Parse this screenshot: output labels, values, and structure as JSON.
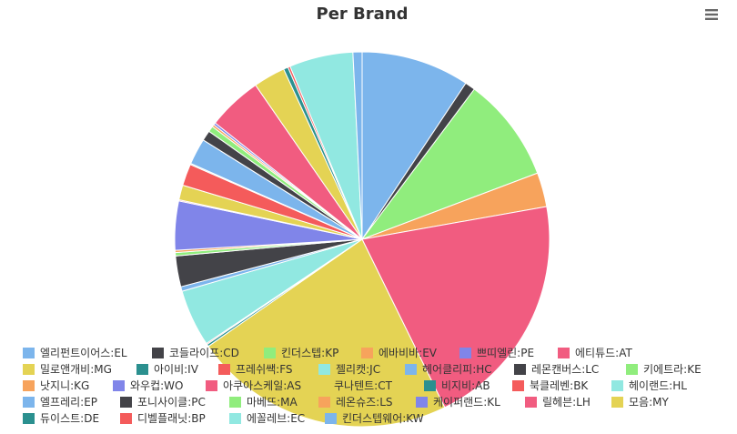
{
  "chart_data": {
    "type": "pie",
    "title": "Per Brand",
    "legend_position": "bottom",
    "slices": [
      {
        "label": "엘리펀트이어스:EL",
        "value": 9.5,
        "color": "#7cb5ec"
      },
      {
        "label": "코들라이프:CD",
        "value": 0.9,
        "color": "#434348"
      },
      {
        "label": "킨더스텝:KP",
        "value": 9.2,
        "color": "#90ed7d"
      },
      {
        "label": "에바비바:EV",
        "value": 3.0,
        "color": "#f7a35c"
      },
      {
        "label": "쁘띠엘린:PE",
        "value": 0.0,
        "color": "#8085e9"
      },
      {
        "label": "에티튜드:AT",
        "value": 20.9,
        "color": "#f15c80"
      },
      {
        "label": "밀로앤개비:MG",
        "value": 23.0,
        "color": "#e4d354"
      },
      {
        "label": "아이비:IV",
        "value": 0.2,
        "color": "#2b908f"
      },
      {
        "label": "프레쉬쌕:FS",
        "value": 0.1,
        "color": "#f45b5b"
      },
      {
        "label": "젤리캣:JC",
        "value": 5.0,
        "color": "#91e8e1"
      },
      {
        "label": "헤어클리피:HC",
        "value": 0.4,
        "color": "#7cb5ec"
      },
      {
        "label": "레몬캔버스:LC",
        "value": 2.7,
        "color": "#434348"
      },
      {
        "label": "키에트라:KE",
        "value": 0.3,
        "color": "#90ed7d"
      },
      {
        "label": "낫지니:KG",
        "value": 0.2,
        "color": "#f7a35c"
      },
      {
        "label": "와우컵:WO",
        "value": 4.3,
        "color": "#8085e9"
      },
      {
        "label": "아쿠아스케일:AS",
        "value": 0.1,
        "color": "#f15c80"
      },
      {
        "label": "쿠나텐트:CT",
        "value": 1.3,
        "color": "#e4d354"
      },
      {
        "label": "비지비:AB",
        "value": 0.0,
        "color": "#2b908f"
      },
      {
        "label": "북클레벤:BK",
        "value": 1.9,
        "color": "#f45b5b"
      },
      {
        "label": "헤이랜드:HL",
        "value": 0.1,
        "color": "#91e8e1"
      },
      {
        "label": "엘프레리:EP",
        "value": 2.3,
        "color": "#7cb5ec"
      },
      {
        "label": "포니사이클:PC",
        "value": 0.9,
        "color": "#434348"
      },
      {
        "label": "마베뜨:MA",
        "value": 0.5,
        "color": "#90ed7d"
      },
      {
        "label": "레온슈즈:LS",
        "value": 0.2,
        "color": "#f7a35c"
      },
      {
        "label": "케이퍼랜드:KL",
        "value": 0.2,
        "color": "#8085e9"
      },
      {
        "label": "릴헤븐:LH",
        "value": 4.8,
        "color": "#f15c80"
      },
      {
        "label": "모음:MY",
        "value": 2.8,
        "color": "#e4d354"
      },
      {
        "label": "듀이스트:DE",
        "value": 0.4,
        "color": "#2b908f"
      },
      {
        "label": "디벨플래닛:BP",
        "value": 0.2,
        "color": "#f45b5b"
      },
      {
        "label": "에꼴레브:EC",
        "value": 5.6,
        "color": "#91e8e1"
      },
      {
        "label": "킨더스텝웨어:KW",
        "value": 0.8,
        "color": "#7cb5ec"
      }
    ]
  },
  "menu": {
    "icon": "hamburger-menu-icon"
  }
}
